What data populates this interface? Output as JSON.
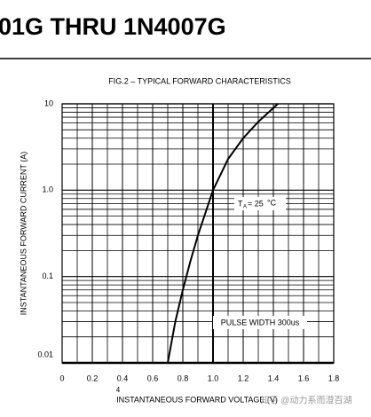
{
  "header": {
    "title": "01G THRU 1N4007G"
  },
  "watermark": "知乎 @动力系而澄百湖",
  "chart_data": {
    "type": "line",
    "log_y": true,
    "title": "FIG.2 – TYPICAL FORWARD CHARACTERISTICS",
    "x_label": "INSTANTANEOUS FORWARD  VOLTAGE (V)",
    "y_label": "INSTANTANEOUS FORWARD CURRENT (A)",
    "stray_label": "4",
    "annotations": [
      "T",
      "A",
      "= 25",
      "°C",
      "PULSE WIDTH 300us"
    ],
    "x": [
      0.7,
      0.75,
      0.8,
      0.85,
      0.9,
      1.0,
      1.1,
      1.2,
      1.3,
      1.43
    ],
    "series": [
      {
        "color": "#000000",
        "values": [
          0.01,
          0.03,
          0.07,
          0.15,
          0.3,
          1.0,
          2.3,
          4,
          6.2,
          10
        ]
      }
    ],
    "xlim": [
      0,
      1.8
    ],
    "ylim": [
      0.01,
      10
    ],
    "xticks": [
      0,
      0.2,
      0.4,
      0.6,
      0.8,
      {
        "value": 1.0,
        "label": "1.0"
      },
      1.2,
      1.4,
      1.6,
      1.8
    ],
    "x_minor_ticks": [
      0.1,
      0.3,
      0.5,
      0.7,
      0.9,
      1.1,
      1.3,
      1.5,
      1.7
    ],
    "yticks": [
      0.01,
      0.1,
      {
        "value": 1,
        "label": "1.0"
      },
      10
    ],
    "y_minor_ticks": [
      0.02,
      0.03,
      0.04,
      0.05,
      0.06,
      0.07,
      0.08,
      0.09,
      0.2,
      0.3,
      0.4,
      0.5,
      0.6,
      0.7,
      0.8,
      0.9,
      2,
      3,
      4,
      5,
      6,
      7,
      8,
      9
    ],
    "grid": true
  }
}
